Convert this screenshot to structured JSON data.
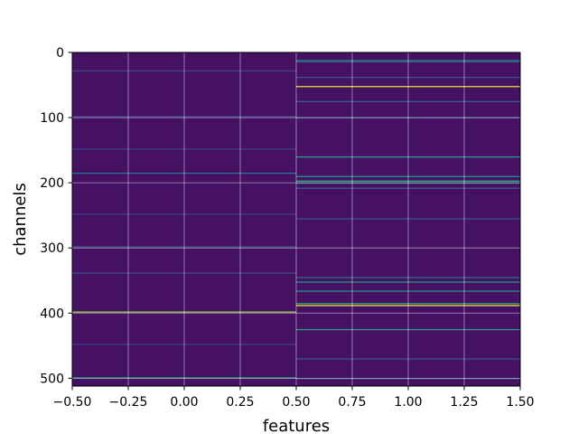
{
  "chart_data": {
    "type": "heatmap",
    "title": "",
    "xlabel": "features",
    "ylabel": "channels",
    "xlim": [
      -0.5,
      1.5
    ],
    "ylim": [
      512,
      0
    ],
    "y_inverted": true,
    "xticks": [
      -0.5,
      -0.25,
      0.0,
      0.25,
      0.5,
      0.75,
      1.0,
      1.25,
      1.5
    ],
    "xtick_labels": [
      "−0.50",
      "−0.25",
      "0.00",
      "0.25",
      "0.50",
      "0.75",
      "1.00",
      "1.25",
      "1.50"
    ],
    "yticks": [
      0,
      100,
      200,
      300,
      400,
      500
    ],
    "ytick_labels": [
      "0",
      "100",
      "200",
      "300",
      "400",
      "500"
    ],
    "grid": true,
    "colormap": "viridis",
    "columns": [
      0,
      1
    ],
    "rows": 512,
    "background_level": 0.06,
    "highlighted_cells": [
      {
        "col": 0,
        "row": 28,
        "value": 0.22
      },
      {
        "col": 0,
        "row": 98,
        "value": 0.2
      },
      {
        "col": 0,
        "row": 148,
        "value": 0.2
      },
      {
        "col": 0,
        "row": 185,
        "value": 0.4
      },
      {
        "col": 0,
        "row": 248,
        "value": 0.2
      },
      {
        "col": 0,
        "row": 298,
        "value": 0.25
      },
      {
        "col": 0,
        "row": 338,
        "value": 0.22
      },
      {
        "col": 0,
        "row": 398,
        "value": 0.85
      },
      {
        "col": 0,
        "row": 448,
        "value": 0.2
      },
      {
        "col": 0,
        "row": 499,
        "value": 0.6
      },
      {
        "col": 1,
        "row": 12,
        "value": 0.45
      },
      {
        "col": 1,
        "row": 14,
        "value": 0.3
      },
      {
        "col": 1,
        "row": 38,
        "value": 0.25
      },
      {
        "col": 1,
        "row": 52,
        "value": 0.95
      },
      {
        "col": 1,
        "row": 75,
        "value": 0.3
      },
      {
        "col": 1,
        "row": 100,
        "value": 0.25
      },
      {
        "col": 1,
        "row": 160,
        "value": 0.55
      },
      {
        "col": 1,
        "row": 190,
        "value": 0.5
      },
      {
        "col": 1,
        "row": 197,
        "value": 0.65
      },
      {
        "col": 1,
        "row": 200,
        "value": 0.45
      },
      {
        "col": 1,
        "row": 208,
        "value": 0.3
      },
      {
        "col": 1,
        "row": 255,
        "value": 0.25
      },
      {
        "col": 1,
        "row": 345,
        "value": 0.35
      },
      {
        "col": 1,
        "row": 352,
        "value": 0.55
      },
      {
        "col": 1,
        "row": 366,
        "value": 0.5
      },
      {
        "col": 1,
        "row": 385,
        "value": 0.6
      },
      {
        "col": 1,
        "row": 388,
        "value": 0.98
      },
      {
        "col": 1,
        "row": 425,
        "value": 0.55
      },
      {
        "col": 1,
        "row": 470,
        "value": 0.25
      },
      {
        "col": 1,
        "row": 500,
        "value": 0.3
      }
    ]
  }
}
